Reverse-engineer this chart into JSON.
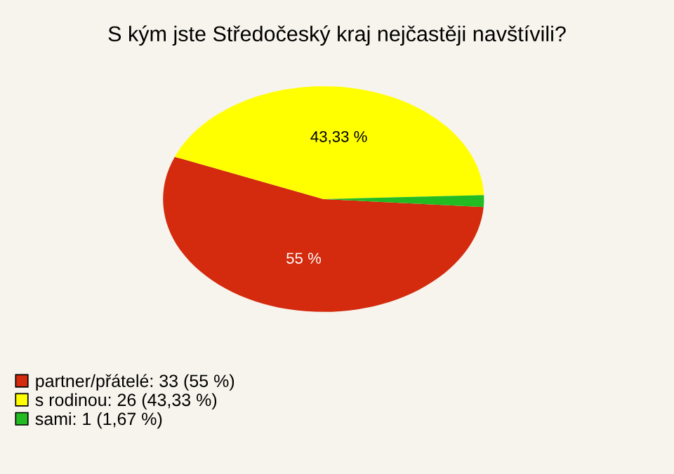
{
  "chart_data": {
    "type": "pie",
    "title": "S kým jste Středočeský kraj nejčastěji navštívili?",
    "categories": [
      "partner/přátelé: 33 (55 %)",
      "s rodinou: 26 (43,33 %)",
      "sami: 1 (1,67 %)"
    ],
    "values": [
      55,
      43.33,
      1.67
    ],
    "colors": [
      "#d42a0e",
      "#ffff00",
      "#22bb22"
    ],
    "value_labels": [
      "55 %",
      "43,33 %",
      null
    ],
    "legend": "bottom left"
  }
}
